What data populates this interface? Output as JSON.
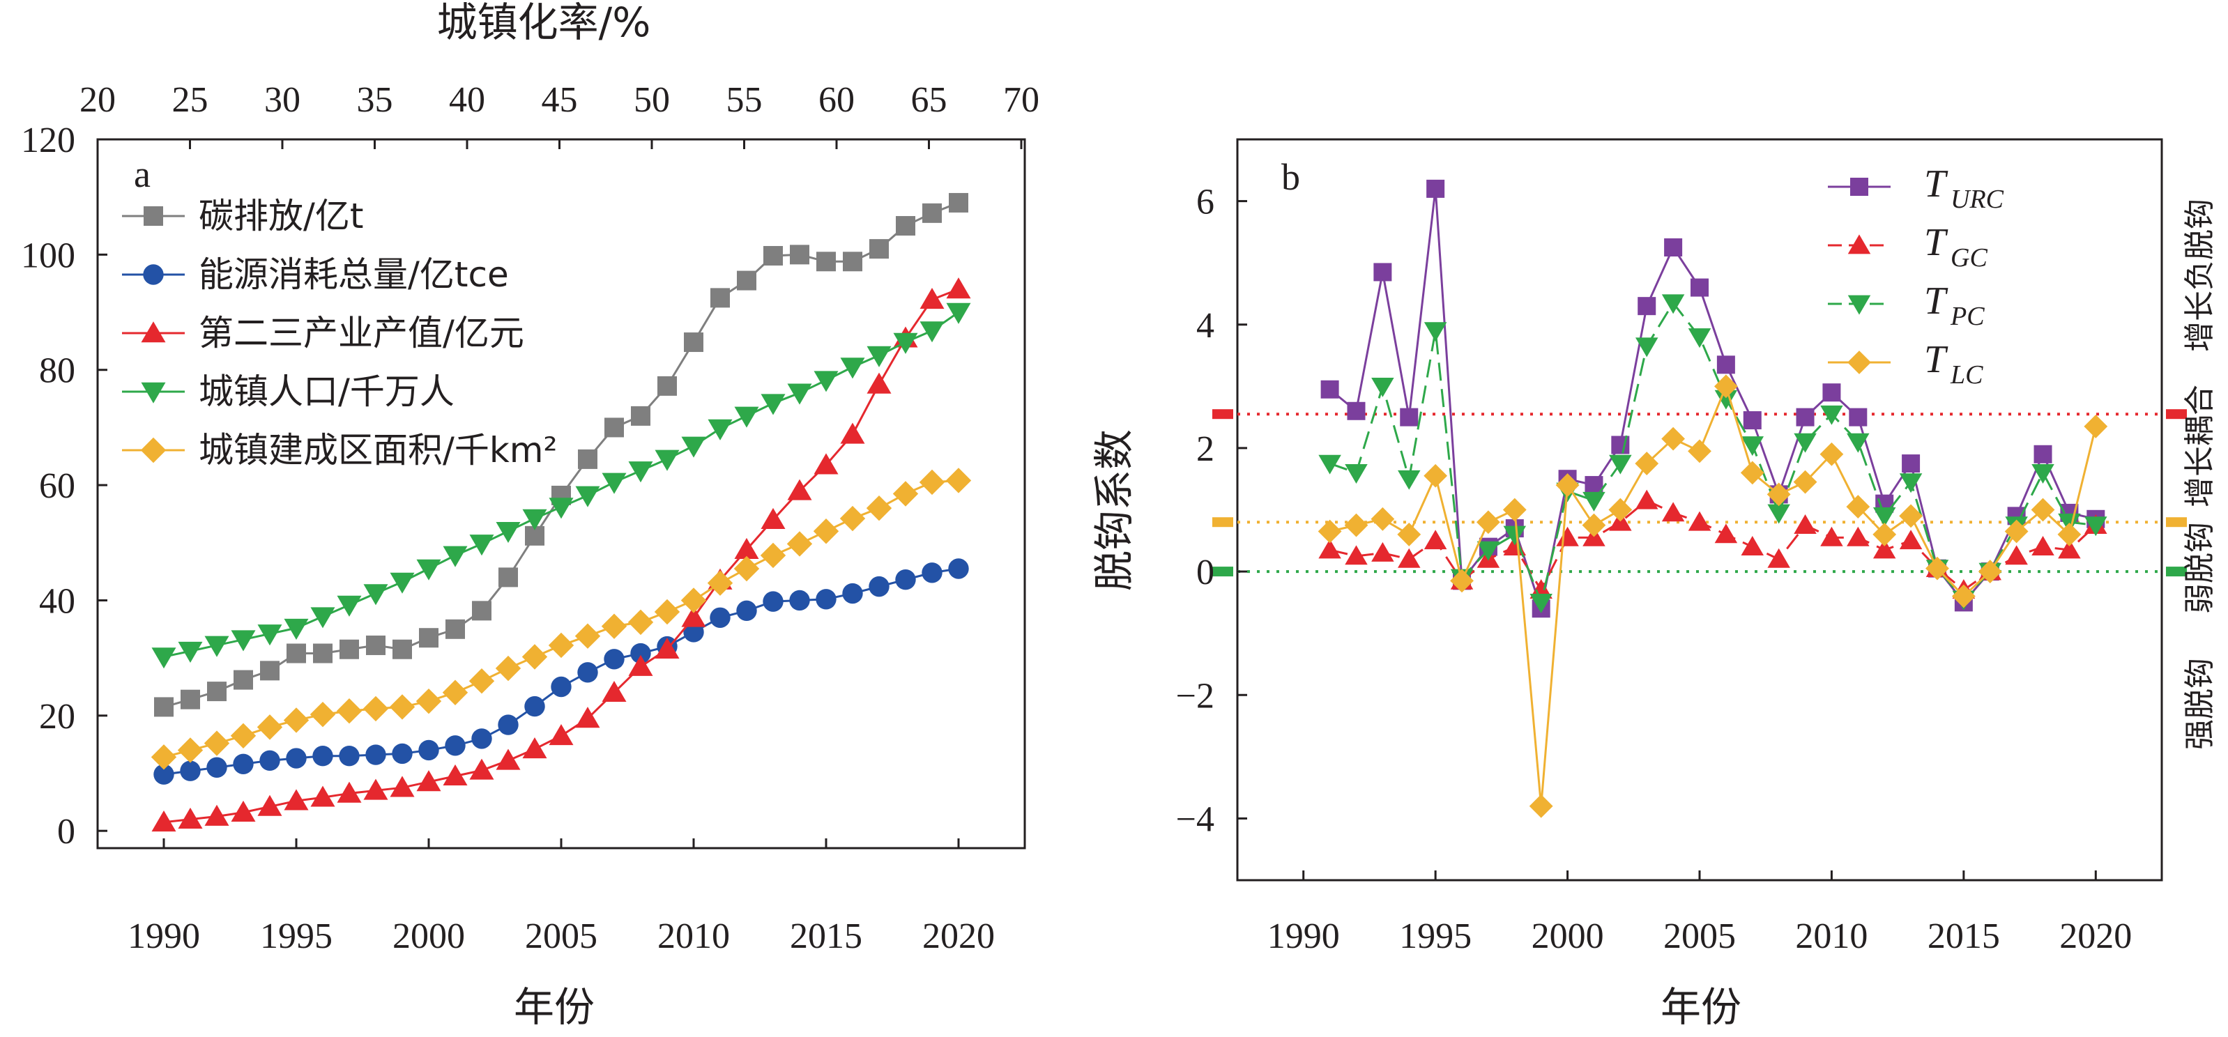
{
  "colors": {
    "gray": "#7f7f7f",
    "blue": "#2352a6",
    "red": "#e5282e",
    "green": "#2ea84a",
    "orange": "#f0b132",
    "purple": "#7b3f9d",
    "axis": "#231f20"
  },
  "chart_data": [
    {
      "type": "line",
      "panel_label": "a",
      "xlabel": "年份",
      "ylabel": "",
      "xlim": [
        1987.5,
        2022.5
      ],
      "ylim": [
        -3,
        120
      ],
      "x_ticks": [
        "1990",
        "1995",
        "2000",
        "2005",
        "2010",
        "2015",
        "2020"
      ],
      "y_ticks": [
        "0",
        "20",
        "40",
        "60",
        "80",
        "100",
        "120"
      ],
      "top_axis": {
        "label": "城镇化率/%",
        "ticks": [
          "20",
          "25",
          "30",
          "35",
          "40",
          "45",
          "50",
          "55",
          "60",
          "65",
          "70"
        ]
      },
      "legend_position": "top-left",
      "x": [
        1990,
        1991,
        1992,
        1993,
        1994,
        1995,
        1996,
        1997,
        1998,
        1999,
        2000,
        2001,
        2002,
        2003,
        2004,
        2005,
        2006,
        2007,
        2008,
        2009,
        2010,
        2011,
        2012,
        2013,
        2014,
        2015,
        2016,
        2017,
        2018,
        2019,
        2020
      ],
      "series": [
        {
          "name": "碳排放/亿t",
          "color_key": "gray",
          "marker": "square",
          "values": [
            21.5,
            22.8,
            24.2,
            26.2,
            27.8,
            30.8,
            30.8,
            31.5,
            32.2,
            31.5,
            33.5,
            35.0,
            38.2,
            44.0,
            51.2,
            58.2,
            64.5,
            70.0,
            72.0,
            77.2,
            84.8,
            92.5,
            95.5,
            99.8,
            100.0,
            98.8,
            98.8,
            101.0,
            105.0,
            107.2,
            109.0
          ]
        },
        {
          "name": "能源消耗总量/亿tce",
          "color_key": "blue",
          "marker": "circle",
          "values": [
            9.8,
            10.4,
            11.0,
            11.6,
            12.2,
            12.6,
            13.0,
            13.0,
            13.2,
            13.4,
            14.0,
            14.8,
            16.0,
            18.4,
            21.6,
            25.0,
            27.5,
            29.8,
            30.8,
            32.0,
            34.5,
            37.0,
            38.2,
            39.8,
            40.0,
            40.2,
            41.2,
            42.4,
            43.6,
            44.8,
            45.5
          ]
        },
        {
          "name": "第二三产业产值/亿元",
          "color_key": "red",
          "marker": "triangle-up",
          "values": [
            1.5,
            2.0,
            2.5,
            3.2,
            4.2,
            5.2,
            5.8,
            6.5,
            7.0,
            7.5,
            8.5,
            9.5,
            10.5,
            12.2,
            14.2,
            16.5,
            19.5,
            24.0,
            28.5,
            31.5,
            37.0,
            43.5,
            48.8,
            54.0,
            59.0,
            63.5,
            68.8,
            77.5,
            85.5,
            92.2,
            94.0
          ]
        },
        {
          "name": "城镇人口/千万人",
          "color_key": "green",
          "marker": "triangle-down",
          "values": [
            30.2,
            31.2,
            32.2,
            33.2,
            34.2,
            35.2,
            37.2,
            39.2,
            41.2,
            43.2,
            45.5,
            47.8,
            49.8,
            52.0,
            54.2,
            56.2,
            58.2,
            60.5,
            62.5,
            64.5,
            66.8,
            69.8,
            72.0,
            74.2,
            76.0,
            78.2,
            80.5,
            82.5,
            84.8,
            86.8,
            90.0
          ]
        },
        {
          "name": "城镇建成区面积/千km²",
          "color_key": "orange",
          "marker": "diamond",
          "values": [
            12.8,
            14.0,
            15.2,
            16.5,
            18.0,
            19.2,
            20.2,
            20.8,
            21.2,
            21.5,
            22.5,
            24.0,
            26.0,
            28.2,
            30.2,
            32.2,
            33.8,
            35.5,
            36.2,
            38.0,
            40.0,
            43.0,
            45.5,
            47.8,
            49.8,
            52.0,
            54.2,
            56.0,
            58.5,
            60.5,
            60.8
          ]
        }
      ]
    },
    {
      "type": "line",
      "panel_label": "b",
      "xlabel": "年份",
      "ylabel": "脱钩系数",
      "xlim": [
        1987.5,
        2022.5
      ],
      "ylim": [
        -5,
        7
      ],
      "x_ticks": [
        "1990",
        "1995",
        "2000",
        "2005",
        "2010",
        "2015",
        "2020"
      ],
      "y_ticks": [
        "−4",
        "−2",
        "0",
        "2",
        "4",
        "6"
      ],
      "legend_position": "top-right",
      "reference_lines": [
        {
          "y": 2.55,
          "color_key": "red"
        },
        {
          "y": 0.8,
          "color_key": "orange"
        },
        {
          "y": 0.0,
          "color_key": "green"
        }
      ],
      "right_side_labels": [
        "强脱钩",
        "弱脱钩",
        "增长耦合",
        "增长负脱钩"
      ],
      "x": [
        1991,
        1992,
        1993,
        1994,
        1995,
        1996,
        1997,
        1998,
        1999,
        2000,
        2001,
        2002,
        2003,
        2004,
        2005,
        2006,
        2007,
        2008,
        2009,
        2010,
        2011,
        2012,
        2013,
        2014,
        2015,
        2016,
        2017,
        2018,
        2019,
        2020
      ],
      "series": [
        {
          "name": "T",
          "subscript": "URC",
          "color_key": "purple",
          "marker": "square",
          "dashed": false,
          "values": [
            2.95,
            2.6,
            4.85,
            2.5,
            6.2,
            -0.15,
            0.4,
            0.7,
            -0.6,
            1.5,
            1.4,
            2.05,
            4.3,
            5.25,
            4.6,
            3.35,
            2.45,
            1.25,
            2.5,
            2.9,
            2.5,
            1.1,
            1.75,
            0.05,
            -0.5,
            0.0,
            0.9,
            1.9,
            0.95,
            0.85
          ]
        },
        {
          "name": "T",
          "subscript": "GC",
          "color_key": "red",
          "marker": "triangle-up",
          "dashed": true,
          "values": [
            0.35,
            0.25,
            0.3,
            0.2,
            0.5,
            -0.15,
            0.2,
            0.4,
            -0.3,
            0.55,
            0.55,
            0.8,
            1.15,
            0.95,
            0.8,
            0.6,
            0.4,
            0.2,
            0.75,
            0.55,
            0.55,
            0.35,
            0.5,
            0.05,
            -0.3,
            0.0,
            0.25,
            0.4,
            0.35,
            0.75
          ]
        },
        {
          "name": "T",
          "subscript": "PC",
          "color_key": "green",
          "marker": "triangle-down",
          "dashed": true,
          "values": [
            1.75,
            1.6,
            3.0,
            1.5,
            3.9,
            -0.1,
            0.35,
            0.6,
            -0.5,
            1.3,
            1.15,
            1.75,
            3.65,
            4.35,
            3.8,
            2.8,
            2.05,
            0.95,
            2.1,
            2.55,
            2.1,
            0.9,
            1.45,
            0.05,
            -0.45,
            0.0,
            0.75,
            1.6,
            0.8,
            0.75
          ]
        },
        {
          "name": "T",
          "subscript": "LC",
          "color_key": "orange",
          "marker": "diamond",
          "dashed": false,
          "values": [
            0.65,
            0.75,
            0.85,
            0.6,
            1.55,
            -0.15,
            0.8,
            1.0,
            -3.8,
            1.4,
            0.75,
            1.0,
            1.75,
            2.15,
            1.95,
            3.0,
            1.6,
            1.25,
            1.45,
            1.9,
            1.05,
            0.6,
            0.9,
            0.05,
            -0.4,
            0.0,
            0.65,
            1.0,
            0.6,
            2.35
          ]
        }
      ]
    }
  ]
}
